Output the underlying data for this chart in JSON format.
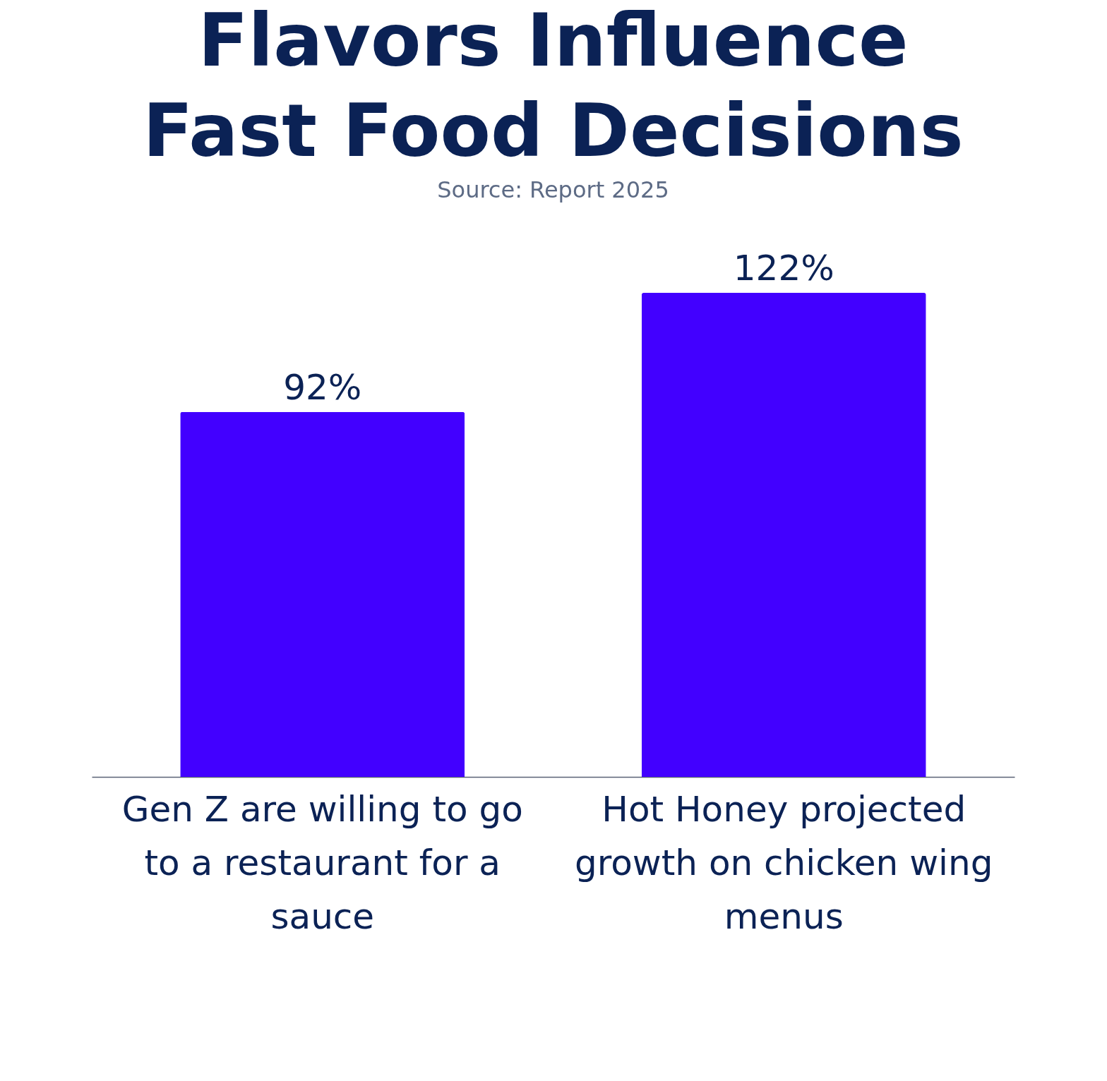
{
  "chart_data": {
    "type": "bar",
    "title": [
      "Flavors Influence",
      "Fast Food Decisions"
    ],
    "subtitle": "Source: Report 2025",
    "categories": [
      "Gen Z are willing to go to a restaurant for a sauce",
      "Hot Honey projected growth on chicken wing menus"
    ],
    "values": [
      92,
      122
    ],
    "color": "#4200ff",
    "value_labels": [
      "92%",
      "122%"
    ]
  }
}
